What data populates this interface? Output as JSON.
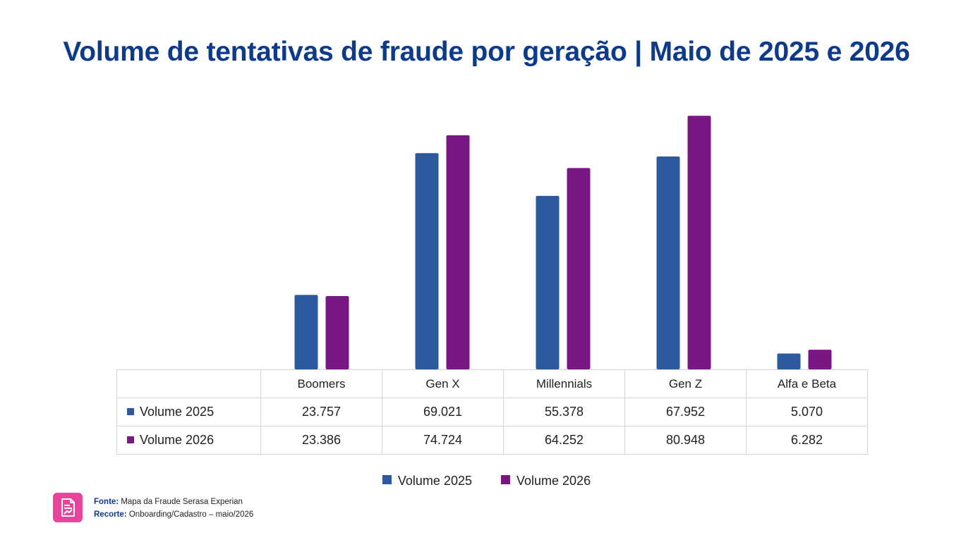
{
  "colors": {
    "series_2025": "#2d5a9f",
    "series_2026": "#791885",
    "title": "#0e3a8c",
    "icon_bg": "#e8449b"
  },
  "footer": {
    "source_label": "Fonte:",
    "source_value": "Mapa da Fraude Serasa Experian",
    "cut_label": "Recorte:",
    "cut_value": "Onboarding/Cadastro – maio/2026",
    "icon": "report-chart-icon"
  },
  "table": {
    "rows": [
      {
        "label": "Volume 2025",
        "values": [
          "23.757",
          "69.021",
          "55.378",
          "67.952",
          "5.070"
        ]
      },
      {
        "label": "Volume 2026",
        "values": [
          "23.386",
          "74.724",
          "64.252",
          "80.948",
          "6.282"
        ]
      }
    ]
  },
  "chart_data": {
    "type": "bar",
    "title": "Volume de tentativas de fraude por geração | Maio de 2025 e 2026",
    "categories": [
      "Boomers",
      "Gen X",
      "Millennials",
      "Gen Z",
      "Alfa e Beta"
    ],
    "series": [
      {
        "name": "Volume 2025",
        "values": [
          23757,
          69021,
          55378,
          67952,
          5070
        ]
      },
      {
        "name": "Volume 2026",
        "values": [
          23386,
          74724,
          64252,
          80948,
          6282
        ]
      }
    ],
    "xlabel": "",
    "ylabel": "",
    "ylim": [
      0,
      81000
    ],
    "grid": false,
    "legend": "bottom-center",
    "data_table": true
  }
}
